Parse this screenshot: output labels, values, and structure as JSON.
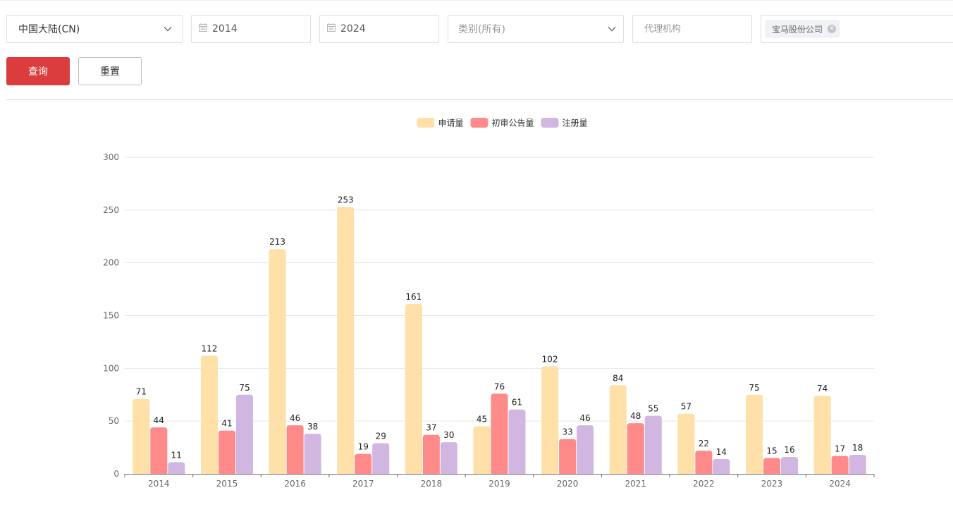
{
  "filters": {
    "region": {
      "value": "中国大陆(CN)"
    },
    "start_year": {
      "value": "2014"
    },
    "end_year": {
      "value": "2024"
    },
    "category": {
      "placeholder": "类别(所有)"
    },
    "agency": {
      "placeholder": "代理机构"
    },
    "applicant": {
      "tags": [
        "宝马股份公司"
      ]
    }
  },
  "buttons": {
    "query": "查询",
    "reset": "重置"
  },
  "icons": {
    "calendar": "calendar-icon",
    "dropdown": "chevron-down-icon",
    "tag_remove": "close-icon"
  },
  "chart_data": {
    "type": "bar",
    "categories": [
      "2014",
      "2015",
      "2016",
      "2017",
      "2018",
      "2019",
      "2020",
      "2021",
      "2022",
      "2023",
      "2024"
    ],
    "series": [
      {
        "name": "申请量",
        "color": "#fee0a8",
        "values": [
          71,
          112,
          213,
          253,
          161,
          45,
          102,
          84,
          57,
          75,
          74
        ]
      },
      {
        "name": "初审公告量",
        "color": "#fe8a8a",
        "values": [
          44,
          41,
          46,
          19,
          37,
          76,
          33,
          48,
          22,
          15,
          17
        ]
      },
      {
        "name": "注册量",
        "color": "#d0b6e0",
        "values": [
          11,
          75,
          38,
          29,
          30,
          61,
          46,
          55,
          14,
          16,
          18
        ]
      }
    ],
    "ylim": [
      0,
      300
    ],
    "yticks": [
      0,
      50,
      100,
      150,
      200,
      250,
      300
    ],
    "grid": true,
    "legend": "top-center",
    "data_labels": true
  }
}
